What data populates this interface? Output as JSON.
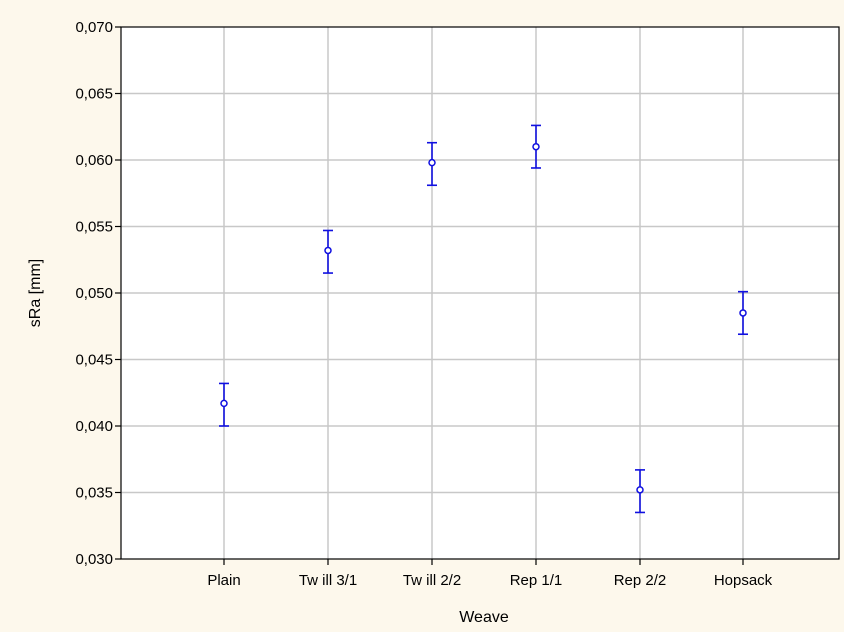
{
  "chart_data": {
    "type": "scatter",
    "title": "",
    "xlabel": "Weave",
    "ylabel": "sRa  [mm]",
    "categories": [
      "Plain",
      "Tw ill 3/1",
      "Tw ill 2/2",
      "Rep 1/1",
      "Rep 2/2",
      "Hopsack"
    ],
    "series": [
      {
        "values": [
          0.0417,
          0.0532,
          0.0598,
          0.061,
          0.0352,
          0.0485
        ],
        "error_low": [
          0.04,
          0.0515,
          0.0581,
          0.0594,
          0.0335,
          0.0469
        ],
        "error_high": [
          0.0432,
          0.0547,
          0.0613,
          0.0626,
          0.0367,
          0.0501
        ]
      }
    ],
    "ylim": [
      0.03,
      0.07
    ],
    "yticks": [
      "0,030",
      "0,035",
      "0,040",
      "0,045",
      "0,050",
      "0,055",
      "0,060",
      "0,065",
      "0,070"
    ],
    "grid": true,
    "colors": {
      "marker": "#1010e0",
      "grid": "#c8c8c8",
      "plot_background": "#ffffff",
      "figure_background": "#fdf8ec"
    }
  }
}
